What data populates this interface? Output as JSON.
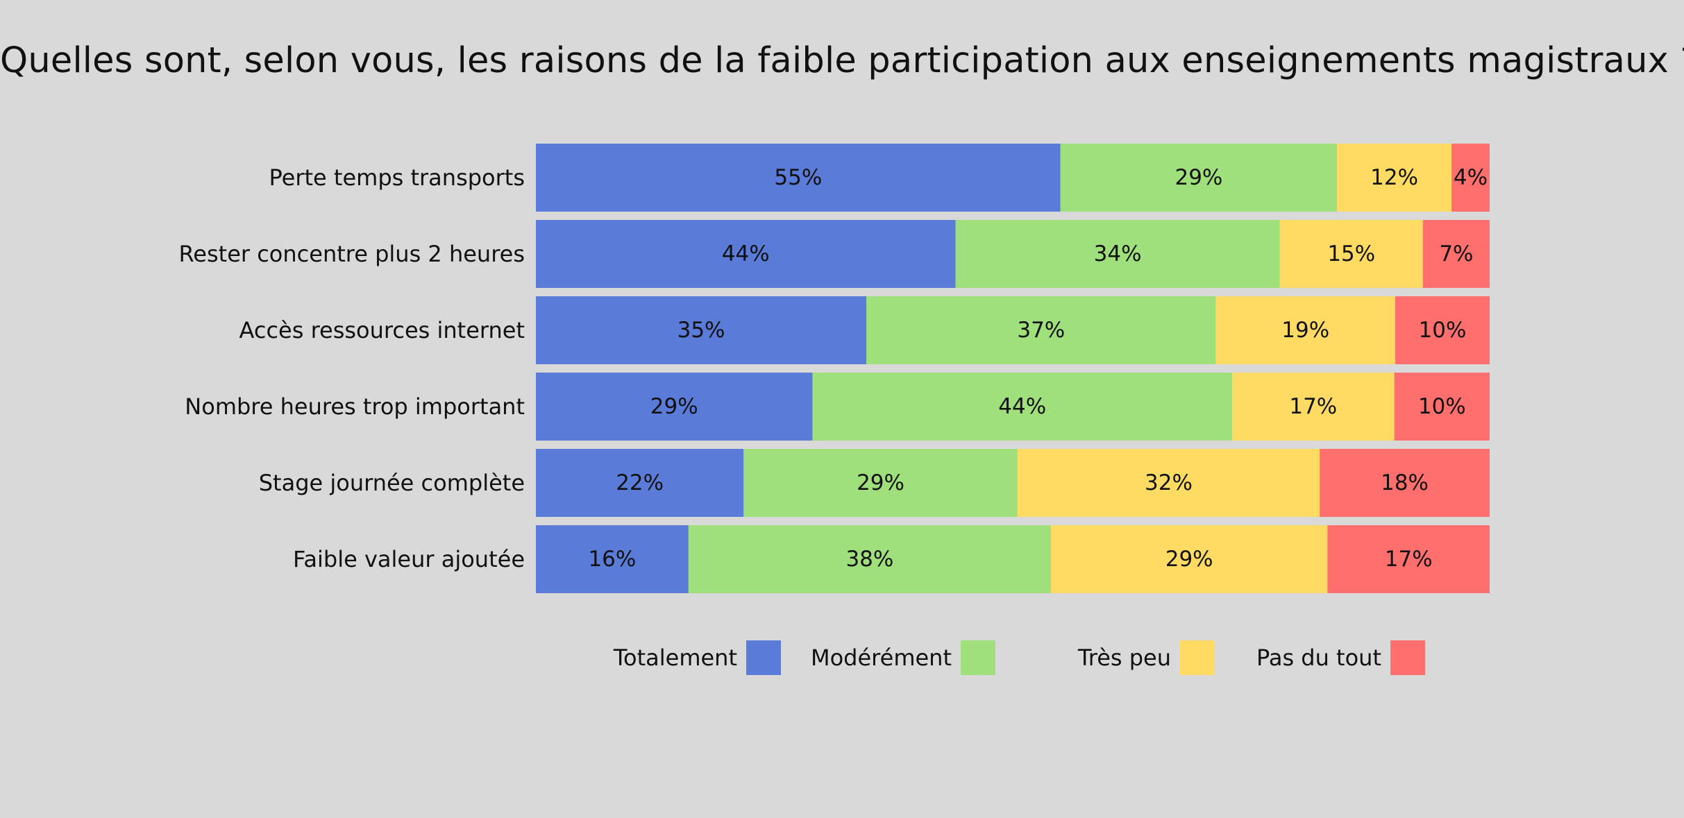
{
  "chart_data": {
    "type": "bar",
    "orientation": "horizontal",
    "stacked": true,
    "title": "Quelles sont, selon vous, les raisons de la faible participation aux enseignements magistraux ?",
    "categories": [
      "Perte temps transports",
      "Rester concentre plus 2 heures",
      "Accès ressources internet",
      "Nombre heures trop important",
      "Stage journée complète",
      "Faible valeur ajoutée"
    ],
    "series": [
      {
        "name": "Totalement",
        "color": "#5b7bd9",
        "values": [
          55,
          44,
          35,
          29,
          22,
          16
        ]
      },
      {
        "name": "Modérément",
        "color": "#9fe07c",
        "values": [
          29,
          34,
          37,
          44,
          29,
          38
        ]
      },
      {
        "name": "Très peu",
        "color": "#ffdb63",
        "values": [
          12,
          15,
          19,
          17,
          32,
          29
        ]
      },
      {
        "name": "Pas du tout",
        "color": "#ff6f6d",
        "values": [
          4,
          7,
          10,
          10,
          18,
          17
        ]
      }
    ],
    "value_suffix": "%",
    "legend_position": "bottom",
    "grid": false
  }
}
